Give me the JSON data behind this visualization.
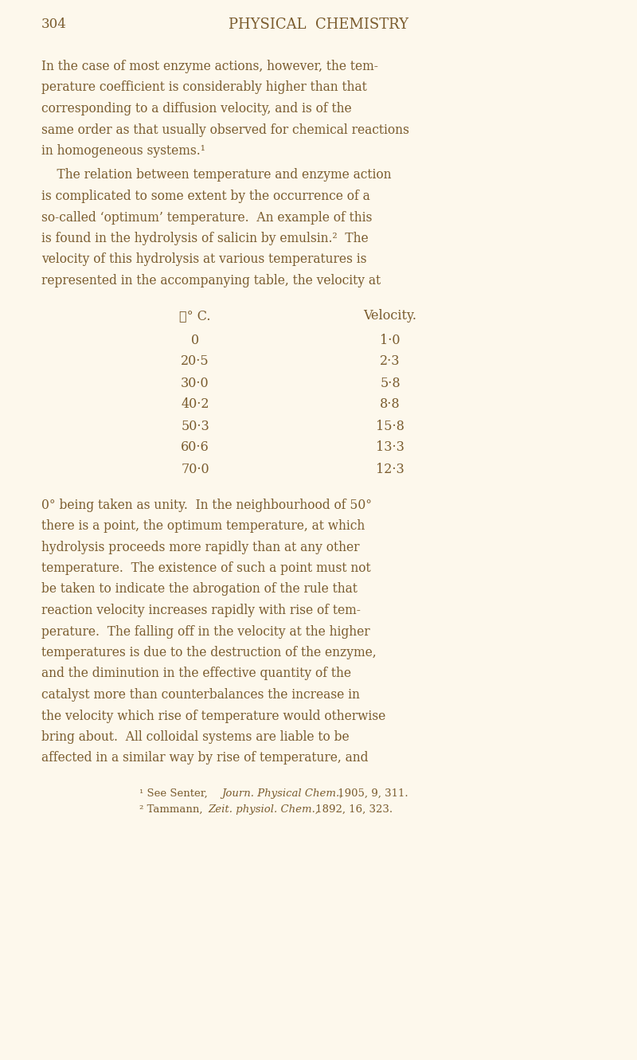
{
  "bg_color": "#fdf8ec",
  "text_color": "#7a5c2e",
  "page_number": "304",
  "header": "PHYSICAL  CHEMISTRY",
  "para1_lines": [
    "In the case of most enzyme actions, however, the tem-",
    "perature coefficient is considerably higher than that",
    "corresponding to a diffusion velocity, and is of the",
    "same order as that usually observed for chemical reactions",
    "in homogeneous systems.¹"
  ],
  "para2_lines": [
    "    The relation between temperature and enzyme action",
    "is complicated to some extent by the occurrence of a",
    "so-called ‘optimum’ temperature.  An example of this",
    "is found in the hydrolysis of salicin by emulsin.²  The",
    "velocity of this hydrolysis at various temperatures is",
    "represented in the accompanying table, the velocity at"
  ],
  "table_col1_header": "ℓ° C.",
  "table_col2_header": "Velocity.",
  "table_data": [
    [
      "0",
      "1·0"
    ],
    [
      "20·5",
      "2·3"
    ],
    [
      "30·0",
      "5·8"
    ],
    [
      "40·2",
      "8·8"
    ],
    [
      "50·3",
      "15·8"
    ],
    [
      "60·6",
      "13·3"
    ],
    [
      "70·0",
      "12·3"
    ]
  ],
  "para3_lines": [
    "0° being taken as unity.  In the neighbourhood of 50°",
    "there is a point, the optimum temperature, at which",
    "hydrolysis proceeds more rapidly than at any other",
    "temperature.  The existence of such a point must not",
    "be taken to indicate the abrogation of the rule that",
    "reaction velocity increases rapidly with rise of tem-",
    "perature.  The falling off in the velocity at the higher",
    "temperatures is due to the destruction of the enzyme,",
    "and the diminution in the effective quantity of the",
    "catalyst more than counterbalances the increase in",
    "the velocity which rise of temperature would otherwise",
    "bring about.  All colloidal systems are liable to be",
    "affected in a similar way by rise of temperature, and"
  ],
  "fn1_prefix": "¹ See Senter, ",
  "fn1_italic": "Journ. Physical Chem.,",
  "fn1_suffix": " 1905, 9, 311.",
  "fn2_prefix": "² Tammann, ",
  "fn2_italic": "Zeit. physiol. Chem.,",
  "fn2_suffix": " 1892, 16, 323.",
  "font_size_header": 13,
  "font_size_page_num": 12,
  "font_size_body": 11.2,
  "font_size_table": 11.5,
  "font_size_footnote": 9.5,
  "figsize": [
    8.0,
    13.31
  ],
  "dpi": 100
}
